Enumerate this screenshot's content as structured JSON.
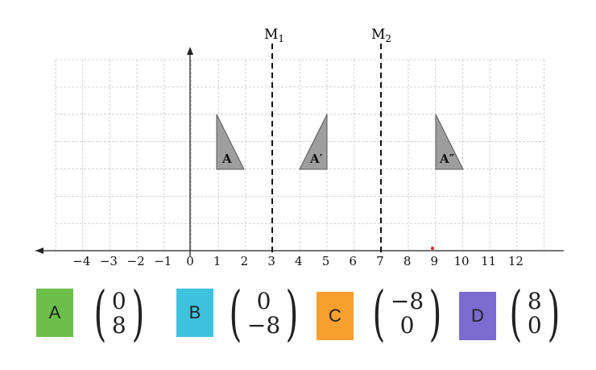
{
  "diagram": {
    "mirror_labels": [
      {
        "letter": "M",
        "sub": "1"
      },
      {
        "letter": "M",
        "sub": "2"
      }
    ],
    "x_ticks": [
      "−4",
      "−3",
      "−2",
      "−1",
      "0",
      "1",
      "2",
      "3",
      "4",
      "5",
      "6",
      "7",
      "8",
      "9",
      "10",
      "11",
      "12"
    ],
    "shape_labels": [
      "A",
      "A′",
      "A″"
    ],
    "colors": {
      "triangle_fill": "#9e9e9e",
      "grid": "#c8c8c8",
      "point": "#e0202a"
    }
  },
  "options": [
    {
      "label": "A",
      "top": "0",
      "bottom": "8",
      "color": "#6dbf4b"
    },
    {
      "label": "B",
      "top": "0",
      "bottom": "−8",
      "color": "#3ec3df"
    },
    {
      "label": "C",
      "top": "−8",
      "bottom": "0",
      "color": "#f7a030"
    },
    {
      "label": "D",
      "top": "8",
      "bottom": "0",
      "color": "#7c6bd0"
    }
  ]
}
